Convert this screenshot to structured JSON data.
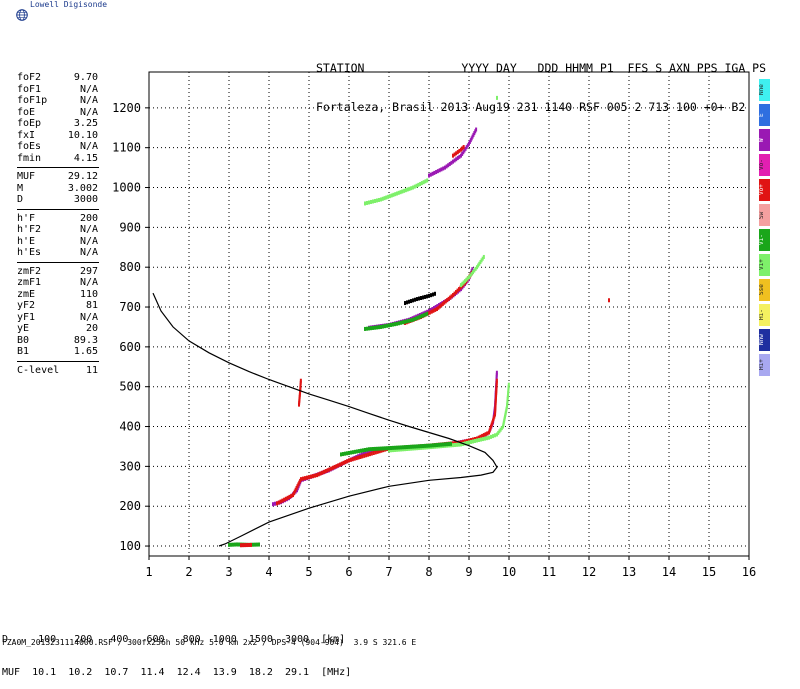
{
  "logo": {
    "text": "Lowell Digisonde",
    "icon": "globe-icon"
  },
  "header": {
    "line1": "STATION              YYYY DAY   DDD HHMM P1  FFS S AXN PPS IGA PS",
    "line2": "Fortaleza, Brasil 2013 Aug19 231 1140 RSF 005 2 713 100 +0+ B2"
  },
  "params": [
    {
      "name": "foF2",
      "value": "9.70"
    },
    {
      "name": "foF1",
      "value": "N/A"
    },
    {
      "name": "foF1p",
      "value": "N/A"
    },
    {
      "name": "foE",
      "value": "N/A"
    },
    {
      "name": "foEp",
      "value": "3.25"
    },
    {
      "name": "fxI",
      "value": "10.10"
    },
    {
      "name": "foEs",
      "value": "N/A"
    },
    {
      "name": "fmin",
      "value": "4.15"
    },
    {
      "sep": true
    },
    {
      "name": "MUF",
      "value": "29.12"
    },
    {
      "name": "M",
      "value": "3.002"
    },
    {
      "name": "D",
      "value": "3000"
    },
    {
      "sep": true
    },
    {
      "name": "h'F",
      "value": "200"
    },
    {
      "name": "h'F2",
      "value": "N/A"
    },
    {
      "name": "h'E",
      "value": "N/A"
    },
    {
      "name": "h'Es",
      "value": "N/A"
    },
    {
      "sep": true
    },
    {
      "name": "zmF2",
      "value": "297"
    },
    {
      "name": "zmF1",
      "value": "N/A"
    },
    {
      "name": "zmE",
      "value": "110"
    },
    {
      "name": "yF2",
      "value": "81"
    },
    {
      "name": "yF1",
      "value": "N/A"
    },
    {
      "name": "yE",
      "value": "20"
    },
    {
      "name": "B0",
      "value": "89.3"
    },
    {
      "name": "B1",
      "value": "1.65"
    },
    {
      "sep": true
    },
    {
      "name": "C-level",
      "value": "11"
    }
  ],
  "legend": [
    {
      "label": "Nne",
      "color": "#3ff0f0"
    },
    {
      "label": "E",
      "color": "#2f6fe0"
    },
    {
      "label": "W",
      "color": "#9a19b3"
    },
    {
      "label": "Vo-",
      "color": "#e21fb1"
    },
    {
      "label": "Vo+",
      "color": "#e01414"
    },
    {
      "label": "Sw",
      "color": "#f4a0a0"
    },
    {
      "label": "Vi-",
      "color": "#1aa61a"
    },
    {
      "label": "Vi+",
      "color": "#7ef06a"
    },
    {
      "label": "Sse",
      "color": "#f0c020"
    },
    {
      "label": "Hi-",
      "color": "#f4f060"
    },
    {
      "label": "Nnw",
      "color": "#1f2fa0"
    },
    {
      "label": "Hi+",
      "color": "#a8a8f0"
    }
  ],
  "footer": {
    "line1": "D     100   200   400   600   800  1000  1500  3000  [km]",
    "line2": "MUF  10.1  10.2  10.7  11.4  12.4  13.9  18.2  29.1  [MHz]",
    "file": "FZA0M_2013231114000.RSF / 300fx256h 50 kHz 5.0 km 2x2 / DPS-4 (904-904)  3.9 S 321.6 E"
  },
  "chart_data": {
    "type": "scatter",
    "title": "",
    "xlabel": "",
    "ylabel": "",
    "xlim": [
      1,
      16
    ],
    "ylim": [
      75,
      1290
    ],
    "x_ticks": [
      1,
      2,
      3,
      4,
      5,
      6,
      7,
      8,
      9,
      10,
      11,
      12,
      13,
      14,
      15,
      16
    ],
    "y_ticks": [
      100,
      200,
      300,
      400,
      500,
      600,
      700,
      800,
      900,
      1000,
      1100,
      1200
    ],
    "grid": true,
    "profile_curve": {
      "name": "",
      "color": "#000000",
      "x": [
        1.1,
        1.3,
        1.6,
        2.0,
        2.5,
        3.0,
        3.5,
        4.0,
        4.5,
        5.0,
        5.5,
        6.0,
        6.5,
        7.0,
        7.5,
        8.0,
        8.5,
        9.0,
        9.4,
        9.6,
        9.7,
        9.6,
        9.3,
        8.8,
        8.0,
        7.0,
        6.0,
        5.0,
        4.0,
        3.3,
        2.9,
        2.75
      ],
      "y": [
        735,
        690,
        650,
        615,
        585,
        560,
        538,
        518,
        500,
        482,
        466,
        450,
        433,
        416,
        400,
        385,
        370,
        352,
        335,
        315,
        298,
        285,
        278,
        272,
        265,
        250,
        225,
        195,
        160,
        125,
        105,
        100
      ]
    },
    "echo_traces": [
      {
        "name": "",
        "color": "#9a19b3",
        "x": [
          4.1,
          4.3,
          4.5,
          4.7,
          4.8,
          5.0,
          5.5,
          6.0,
          6.5,
          7.0,
          7.5,
          8.0,
          8.5,
          9.0,
          9.3,
          9.5,
          9.6,
          9.65,
          9.7
        ],
        "y": [
          205,
          210,
          220,
          240,
          265,
          272,
          290,
          315,
          338,
          345,
          345,
          350,
          355,
          365,
          372,
          385,
          410,
          450,
          540
        ]
      },
      {
        "name": "",
        "color": "#e01414",
        "x": [
          4.2,
          4.6,
          4.8,
          5.2,
          6.0,
          7.0,
          8.0,
          8.8,
          9.2,
          9.5,
          9.65,
          9.7
        ],
        "y": [
          207,
          228,
          268,
          278,
          315,
          345,
          352,
          360,
          370,
          385,
          430,
          520
        ]
      },
      {
        "name": "",
        "color": "#7ef06a",
        "x": [
          7.0,
          8.0,
          8.8,
          9.2,
          9.5,
          9.7,
          9.85,
          9.95,
          10.0
        ],
        "y": [
          340,
          348,
          355,
          365,
          372,
          380,
          400,
          450,
          510
        ]
      },
      {
        "name": "",
        "color": "#1aa61a",
        "x": [
          5.8,
          6.5,
          7.2,
          8.0,
          8.6
        ],
        "y": [
          330,
          343,
          347,
          352,
          357
        ]
      },
      {
        "name": "",
        "color": "#9a19b3",
        "x": [
          6.5,
          7.0,
          7.5,
          8.0,
          8.5,
          8.8,
          9.0,
          9.1
        ],
        "y": [
          648,
          655,
          668,
          690,
          720,
          745,
          770,
          800
        ]
      },
      {
        "name": "",
        "color": "#e01414",
        "x": [
          7.4,
          7.8,
          8.2,
          8.6,
          8.9,
          9.1
        ],
        "y": [
          660,
          675,
          695,
          730,
          760,
          790
        ]
      },
      {
        "name": "",
        "color": "#1aa61a",
        "x": [
          6.4,
          6.8,
          7.2,
          7.6,
          8.0
        ],
        "y": [
          645,
          650,
          658,
          668,
          685
        ]
      },
      {
        "name": "",
        "color": "#7ef06a",
        "x": [
          8.8,
          9.0,
          9.2,
          9.4
        ],
        "y": [
          755,
          775,
          800,
          830
        ]
      },
      {
        "name": "",
        "color": "#000000",
        "x": [
          7.4,
          7.7,
          8.0,
          8.2
        ],
        "y": [
          710,
          720,
          728,
          735
        ]
      },
      {
        "name": "",
        "color": "#7ef06a",
        "x": [
          6.4,
          6.8,
          7.2,
          7.6,
          8.0
        ],
        "y": [
          960,
          970,
          985,
          1000,
          1020
        ]
      },
      {
        "name": "",
        "color": "#9a19b3",
        "x": [
          8.0,
          8.4,
          8.8,
          9.0,
          9.2
        ],
        "y": [
          1030,
          1050,
          1080,
          1110,
          1150
        ]
      },
      {
        "name": "",
        "color": "#e01414",
        "x": [
          8.6,
          8.8,
          8.9
        ],
        "y": [
          1080,
          1095,
          1105
        ]
      },
      {
        "name": "",
        "color": "#e01414",
        "x": [
          4.75,
          4.78,
          4.8
        ],
        "y": [
          455,
          490,
          520
        ]
      },
      {
        "name": "",
        "color": "#1aa61a",
        "x": [
          3.0,
          3.2,
          3.5,
          3.8
        ],
        "y": [
          103,
          104,
          103,
          104
        ]
      },
      {
        "name": "",
        "color": "#e01414",
        "x": [
          3.3,
          3.6
        ],
        "y": [
          102,
          103
        ]
      },
      {
        "name": "",
        "color": "#e01414",
        "x": [
          12.5
        ],
        "y": [
          717
        ]
      },
      {
        "name": "",
        "color": "#7ef06a",
        "x": [
          9.7
        ],
        "y": [
          1225
        ]
      }
    ]
  }
}
